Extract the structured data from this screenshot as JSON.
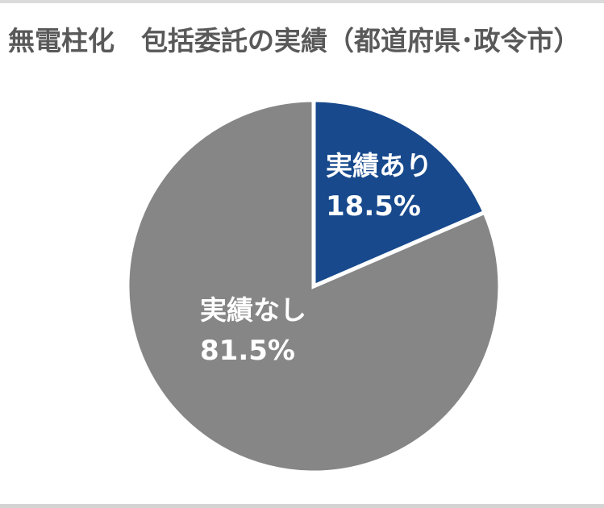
{
  "title": "無電柱化　包括委託の実績（都道府県･政令市）",
  "colors": {
    "background": "#FFFFFF",
    "title_text": "#595959",
    "label_text": "#FFFFFF",
    "separator": "#FFFFFF",
    "edge_line_top": "#DBDBDB",
    "edge_line_bottom": "#D4D4D4"
  },
  "chart_data": {
    "type": "pie",
    "title": "無電柱化　包括委託の実績（都道府県･政令市）",
    "categories": [
      "実績あり",
      "実績なし"
    ],
    "values": [
      18.5,
      81.5
    ],
    "units": "%",
    "slices": [
      {
        "name": "実績あり",
        "value": 18.5,
        "display": "18.5%",
        "color": "#17498C"
      },
      {
        "name": "実績なし",
        "value": 81.5,
        "display": "81.5%",
        "color": "#868686"
      }
    ],
    "start_angle_deg": 0,
    "direction": "clockwise",
    "legend": "none",
    "data_labels": "inside slices: category name above percentage",
    "label_text_color": "#FFFFFF",
    "slice_separator": "white gap between slices"
  }
}
